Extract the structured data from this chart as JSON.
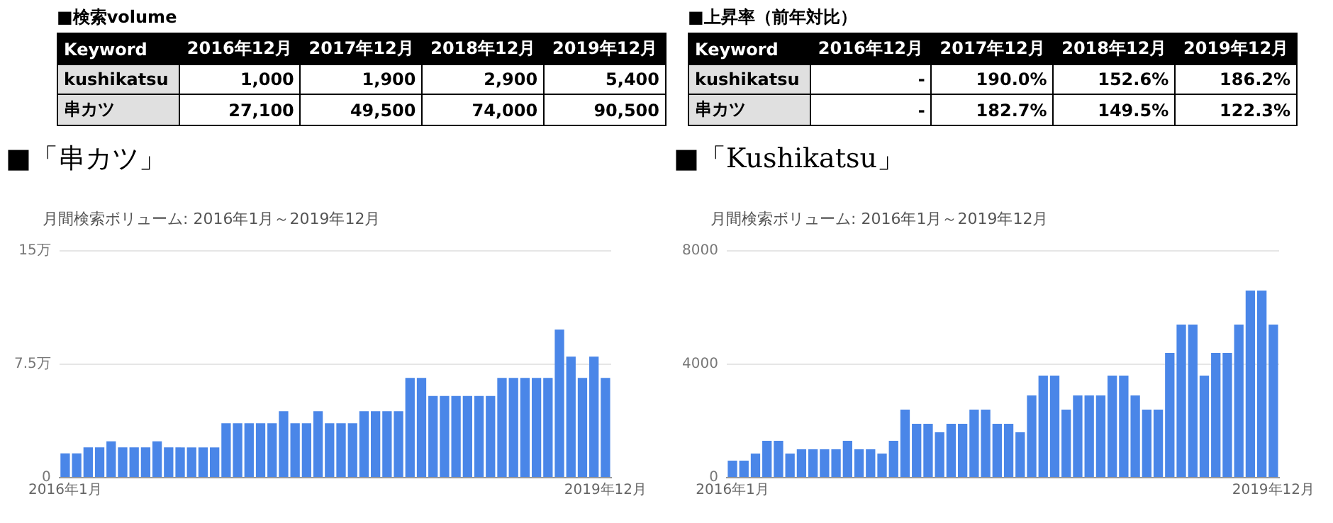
{
  "chart_data": [
    {
      "type": "other",
      "title": "■検索volume",
      "annotations": [
        "Keyword",
        "2016年12月",
        "2017年12月",
        "2018年12月",
        "2019年12月",
        "kushikatsu",
        "1,000",
        "1,900",
        "2,900",
        "5,400",
        "串カツ",
        "27,100",
        "49,500",
        "74,000",
        "90,500"
      ]
    },
    {
      "type": "other",
      "title": "■上昇率（前年対比）",
      "annotations": [
        "Keyword",
        "2016年12月",
        "2017年12月",
        "2018年12月",
        "2019年12月",
        "kushikatsu",
        "-",
        "190.0%",
        "152.6%",
        "186.2%",
        "串カツ",
        "-",
        "182.7%",
        "149.5%",
        "122.3%"
      ]
    },
    {
      "type": "bar",
      "title": "■「串カツ」",
      "subtitle": "月間検索ボリューム: 2016年1月～2019年12月",
      "categories": [
        "2016年1月",
        null,
        null,
        null,
        null,
        null,
        null,
        null,
        null,
        null,
        null,
        null,
        null,
        null,
        null,
        null,
        null,
        null,
        null,
        null,
        null,
        null,
        null,
        null,
        null,
        null,
        null,
        null,
        null,
        null,
        null,
        null,
        null,
        null,
        null,
        null,
        null,
        null,
        null,
        null,
        null,
        null,
        null,
        null,
        null,
        null,
        null,
        "2019年12月"
      ],
      "color": "#4a86e8",
      "values": [
        1.6,
        1.6,
        2.0,
        2.0,
        2.4,
        2.0,
        2.0,
        2.0,
        2.4,
        2.0,
        2.0,
        2.0,
        2.0,
        2.0,
        3.6,
        3.6,
        3.6,
        3.6,
        3.6,
        4.4,
        3.6,
        3.6,
        4.4,
        3.6,
        3.6,
        3.6,
        4.4,
        4.4,
        4.4,
        4.4,
        6.6,
        6.6,
        5.4,
        5.4,
        5.4,
        5.4,
        5.4,
        5.4,
        6.6,
        6.6,
        6.6,
        6.6,
        6.6,
        9.8,
        8.0,
        6.6,
        8.0,
        6.6
      ],
      "ylim": [
        0,
        15
      ],
      "yticks": [
        0,
        {
          "value": 7.5,
          "label": "7.5万"
        },
        {
          "value": 15,
          "label": "15万"
        }
      ],
      "grid": "y"
    },
    {
      "type": "bar",
      "title": "■「Kushikatsu」",
      "subtitle": "月間検索ボリューム: 2016年1月～2019年12月",
      "categories": [
        "2016年1月",
        null,
        null,
        null,
        null,
        null,
        null,
        null,
        null,
        null,
        null,
        null,
        null,
        null,
        null,
        null,
        null,
        null,
        null,
        null,
        null,
        null,
        null,
        null,
        null,
        null,
        null,
        null,
        null,
        null,
        null,
        null,
        null,
        null,
        null,
        null,
        null,
        null,
        null,
        null,
        null,
        null,
        null,
        null,
        null,
        null,
        null,
        "2019年12月"
      ],
      "color": "#4a86e8",
      "values": [
        600,
        600,
        850,
        1300,
        1300,
        850,
        1000,
        1000,
        1000,
        1000,
        1300,
        1000,
        1000,
        850,
        1300,
        2400,
        1900,
        1900,
        1600,
        1900,
        1900,
        2400,
        2400,
        1900,
        1900,
        1600,
        2900,
        3600,
        3600,
        2400,
        2900,
        2900,
        2900,
        3600,
        3600,
        2900,
        2400,
        2400,
        4400,
        5400,
        5400,
        3600,
        4400,
        4400,
        5400,
        6600,
        6600,
        5400
      ],
      "ylim": [
        0,
        8000
      ],
      "yticks": [
        0,
        4000,
        8000
      ],
      "grid": "y"
    }
  ]
}
